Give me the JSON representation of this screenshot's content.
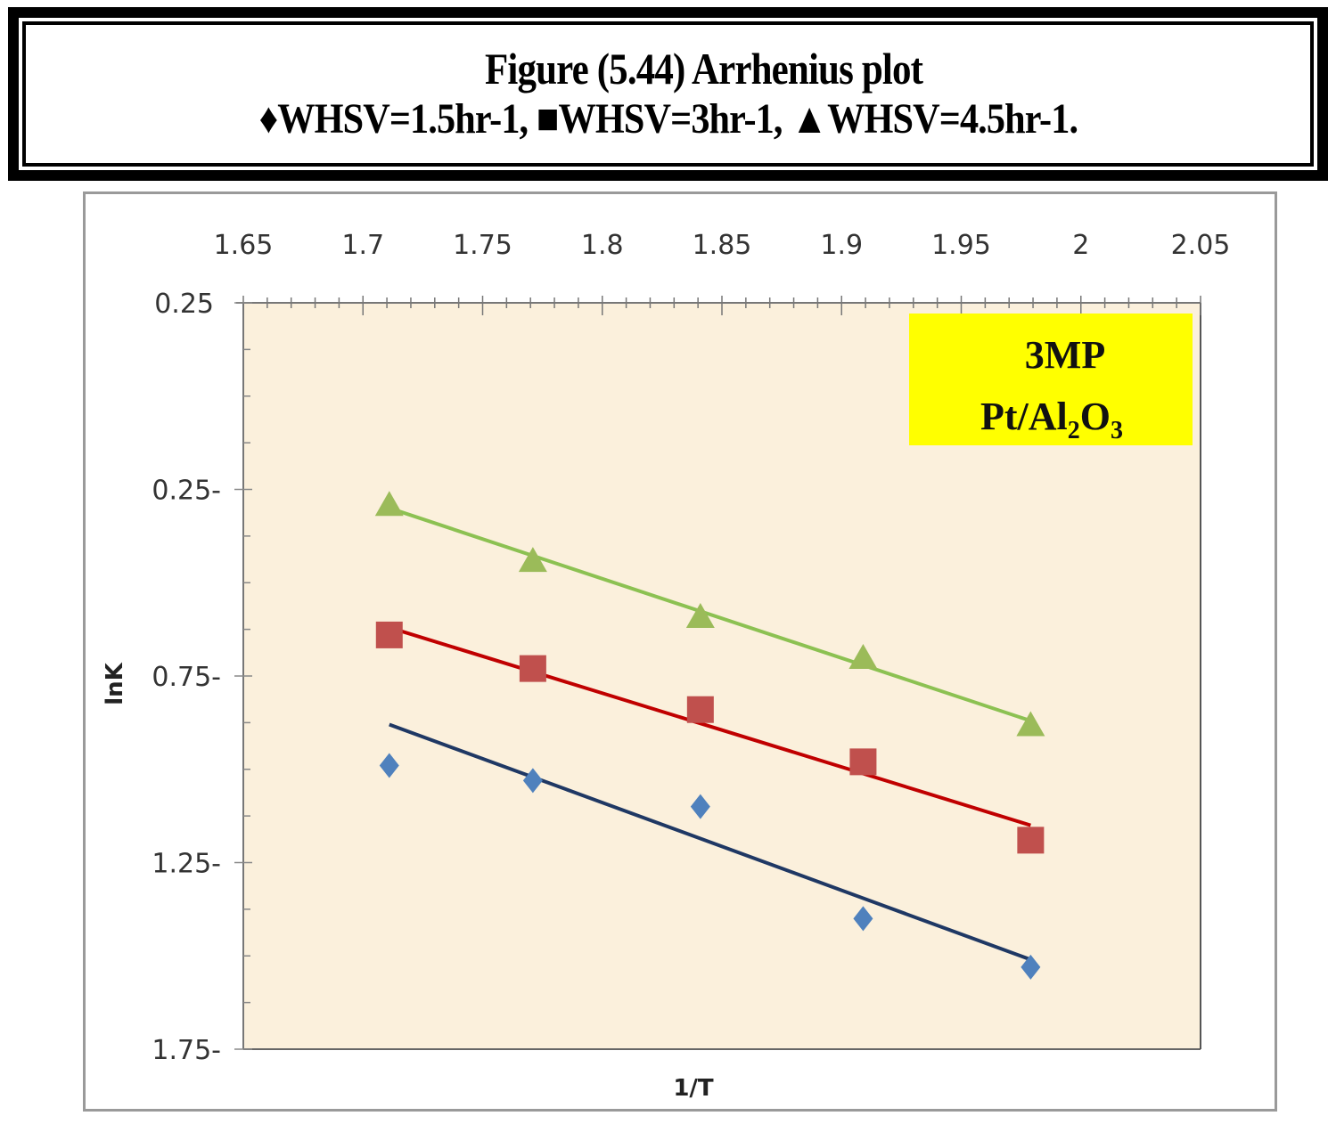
{
  "caption": {
    "title": "Figure (5.44) Arrhenius plot",
    "legend_line": "♦WHSV=1.5hr-1, ■WHSV=3hr-1, ▲WHSV=4.5hr-1."
  },
  "chart_data": {
    "type": "scatter",
    "title": "Figure (5.44) Arrhenius plot",
    "subtitle": "♦WHSV=1.5hr-1, ■WHSV=3hr-1, ▲WHSV=4.5hr-1.",
    "xlabel": "1/T",
    "ylabel": "lnK",
    "xlim": [
      1.65,
      2.05
    ],
    "ylim": [
      -1.75,
      0.25
    ],
    "x_ticks": [
      "1.65",
      "1.7",
      "1.75",
      "1.8",
      "1.85",
      "1.9",
      "1.95",
      "2",
      "2.05"
    ],
    "x_tick_values": [
      1.65,
      1.7,
      1.75,
      1.8,
      1.85,
      1.9,
      1.95,
      2.0,
      2.05
    ],
    "y_ticks": [
      "0.25",
      "0.25-",
      "0.75-",
      "1.25-",
      "1.75-"
    ],
    "y_tick_values": [
      0.25,
      -0.25,
      -0.75,
      -1.25,
      -1.75
    ],
    "x_axis_position": "top",
    "grid": false,
    "plot_background": "#FBF0DC",
    "annotation": {
      "line1": "3MP",
      "line2_main": "Pt/Al",
      "sub1": "2",
      "line2_mid": "O",
      "sub2": "3",
      "background": "#FFFF00"
    },
    "series": [
      {
        "name": "WHSV=1.5hr-1",
        "marker": "diamond",
        "color": "#4F81BD",
        "line_color": "#1F3864",
        "x": [
          1.711,
          1.771,
          1.841,
          1.909,
          1.979
        ],
        "y": [
          -0.99,
          -1.03,
          -1.1,
          -1.4,
          -1.53
        ],
        "trendline": {
          "x": [
            1.711,
            1.979
          ],
          "y": [
            -0.88,
            -1.51
          ]
        }
      },
      {
        "name": "WHSV=3hr-1",
        "marker": "square",
        "color": "#C0504D",
        "line_color": "#C00000",
        "x": [
          1.711,
          1.771,
          1.841,
          1.909,
          1.979
        ],
        "y": [
          -0.64,
          -0.73,
          -0.84,
          -0.98,
          -1.19
        ],
        "trendline": {
          "x": [
            1.711,
            1.979
          ],
          "y": [
            -0.62,
            -1.15
          ]
        }
      },
      {
        "name": "WHSV=4.5hr-1",
        "marker": "triangle",
        "color": "#9BBB59",
        "line_color": "#8CC152",
        "x": [
          1.711,
          1.771,
          1.841,
          1.909,
          1.979
        ],
        "y": [
          -0.29,
          -0.44,
          -0.59,
          -0.7,
          -0.88
        ],
        "trendline": {
          "x": [
            1.711,
            1.979
          ],
          "y": [
            -0.3,
            -0.87
          ]
        }
      }
    ]
  }
}
